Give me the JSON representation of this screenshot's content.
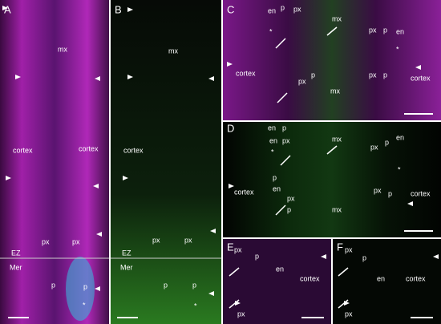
{
  "panels": [
    {
      "label": "A",
      "annotations": [
        "mx",
        "cortex",
        "cortex",
        "px",
        "px",
        "EZ",
        "Mer",
        "p",
        "p",
        "*"
      ]
    },
    {
      "label": "B",
      "annotations": [
        "mx",
        "cortex",
        "px",
        "px",
        "EZ",
        "Mer",
        "p",
        "p",
        "*"
      ]
    },
    {
      "label": "C",
      "annotations": [
        "en",
        "p",
        "px",
        "mx",
        "px",
        "p",
        "en",
        "*",
        "*",
        "cortex",
        "px",
        "p",
        "mx",
        "px",
        "p",
        "cortex"
      ]
    },
    {
      "label": "D",
      "annotations": [
        "en",
        "p",
        "en",
        "px",
        "mx",
        "px",
        "p",
        "en",
        "*",
        "*",
        "cortex",
        "en",
        "p",
        "px",
        "p",
        "mx",
        "px",
        "p",
        "cortex"
      ]
    },
    {
      "label": "E",
      "annotations": [
        "px",
        "p",
        "en",
        "cortex",
        "px"
      ]
    },
    {
      "label": "F",
      "annotations": [
        "px",
        "p",
        "en",
        "cortex",
        "px"
      ]
    }
  ]
}
